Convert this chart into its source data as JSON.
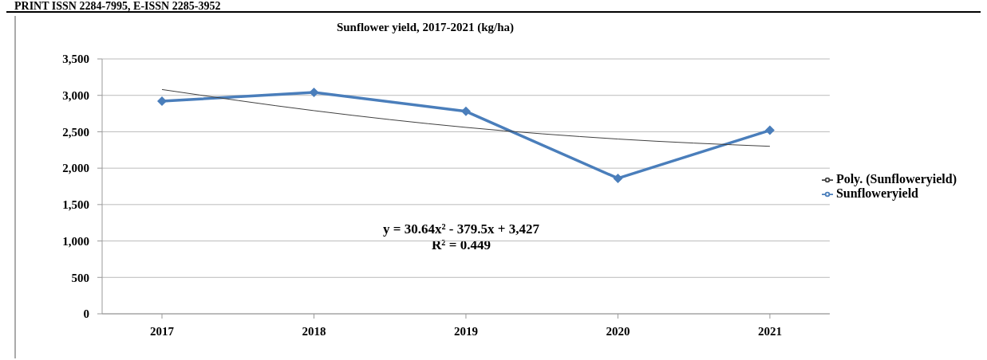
{
  "chart_data": {
    "type": "line",
    "title": "Sunflower yield, 2017-2021 (kg/ha)",
    "categories": [
      "2017",
      "2018",
      "2019",
      "2020",
      "2021"
    ],
    "series": [
      {
        "name": "Sunfloweryield",
        "color": "#4a7ebb",
        "values": [
          2920,
          3040,
          2780,
          1860,
          2520
        ]
      },
      {
        "name": "Poly. (Sunfloweryield)",
        "color": "#404040",
        "values": [
          3080,
          2790,
          2560,
          2400,
          2300
        ],
        "marker": "none"
      }
    ],
    "ylim": [
      0,
      3500
    ],
    "yticks": [
      {
        "value": 0,
        "label": "0"
      },
      {
        "value": 500,
        "label": "500"
      },
      {
        "value": 1000,
        "label": "1,000"
      },
      {
        "value": 1500,
        "label": "1,500"
      },
      {
        "value": 2000,
        "label": "2,000"
      },
      {
        "value": 2500,
        "label": "2,500"
      },
      {
        "value": 3000,
        "label": "3,000"
      },
      {
        "value": 3500,
        "label": "3,500"
      }
    ],
    "grid": "y",
    "legend": "right",
    "marker": "diamond",
    "annotations": [
      "PRINT ISSN 2284-7995, E-ISSN 2285-3952",
      "y = 30.64x² - 379.5x + 3,427",
      "R² = 0.449"
    ]
  }
}
